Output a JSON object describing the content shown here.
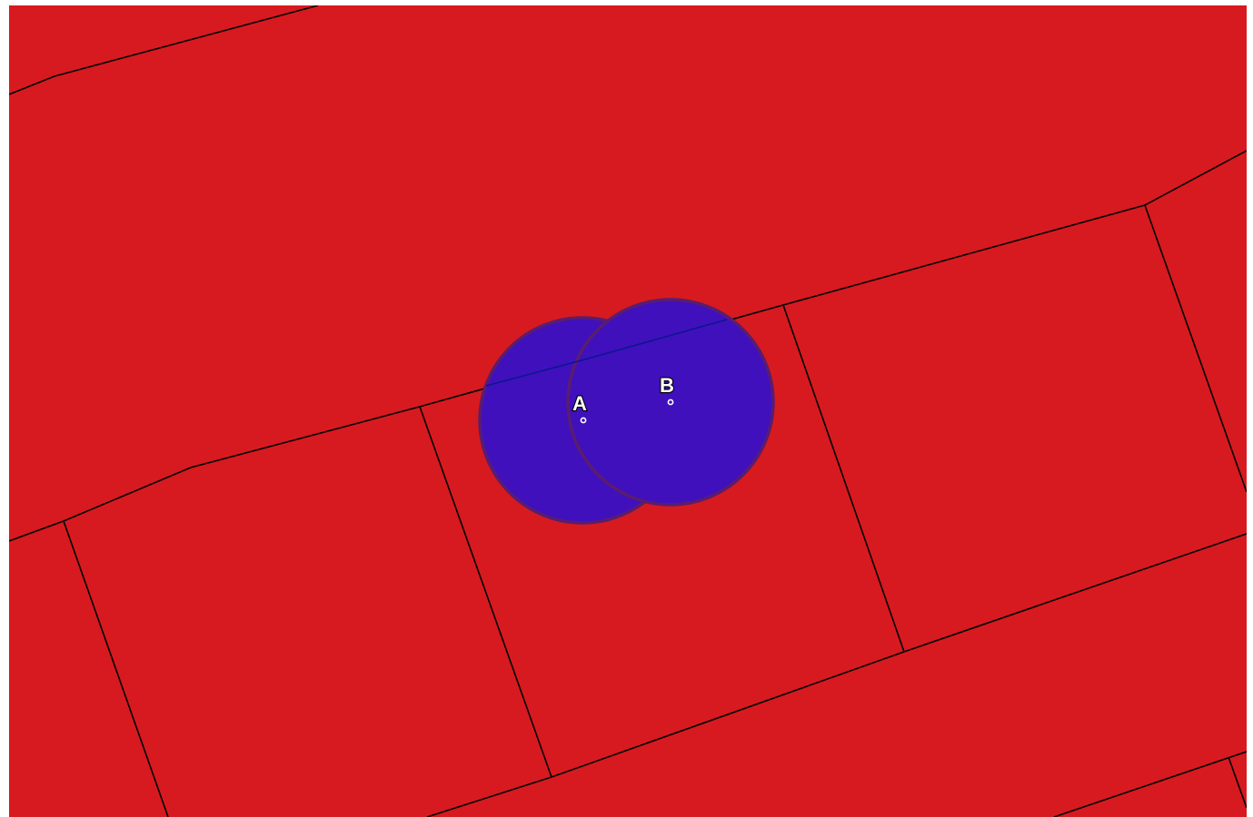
{
  "map": {
    "parcel_color": "#d71a1f",
    "parcel_line_color": "#000000",
    "buffer_fill_color": "#4010bd",
    "buffer_stroke_color": "#5a1d6e",
    "point_color": "#ffffff",
    "points": [
      {
        "id": "point-a",
        "label": "A"
      },
      {
        "id": "point-b",
        "label": "B"
      }
    ]
  }
}
